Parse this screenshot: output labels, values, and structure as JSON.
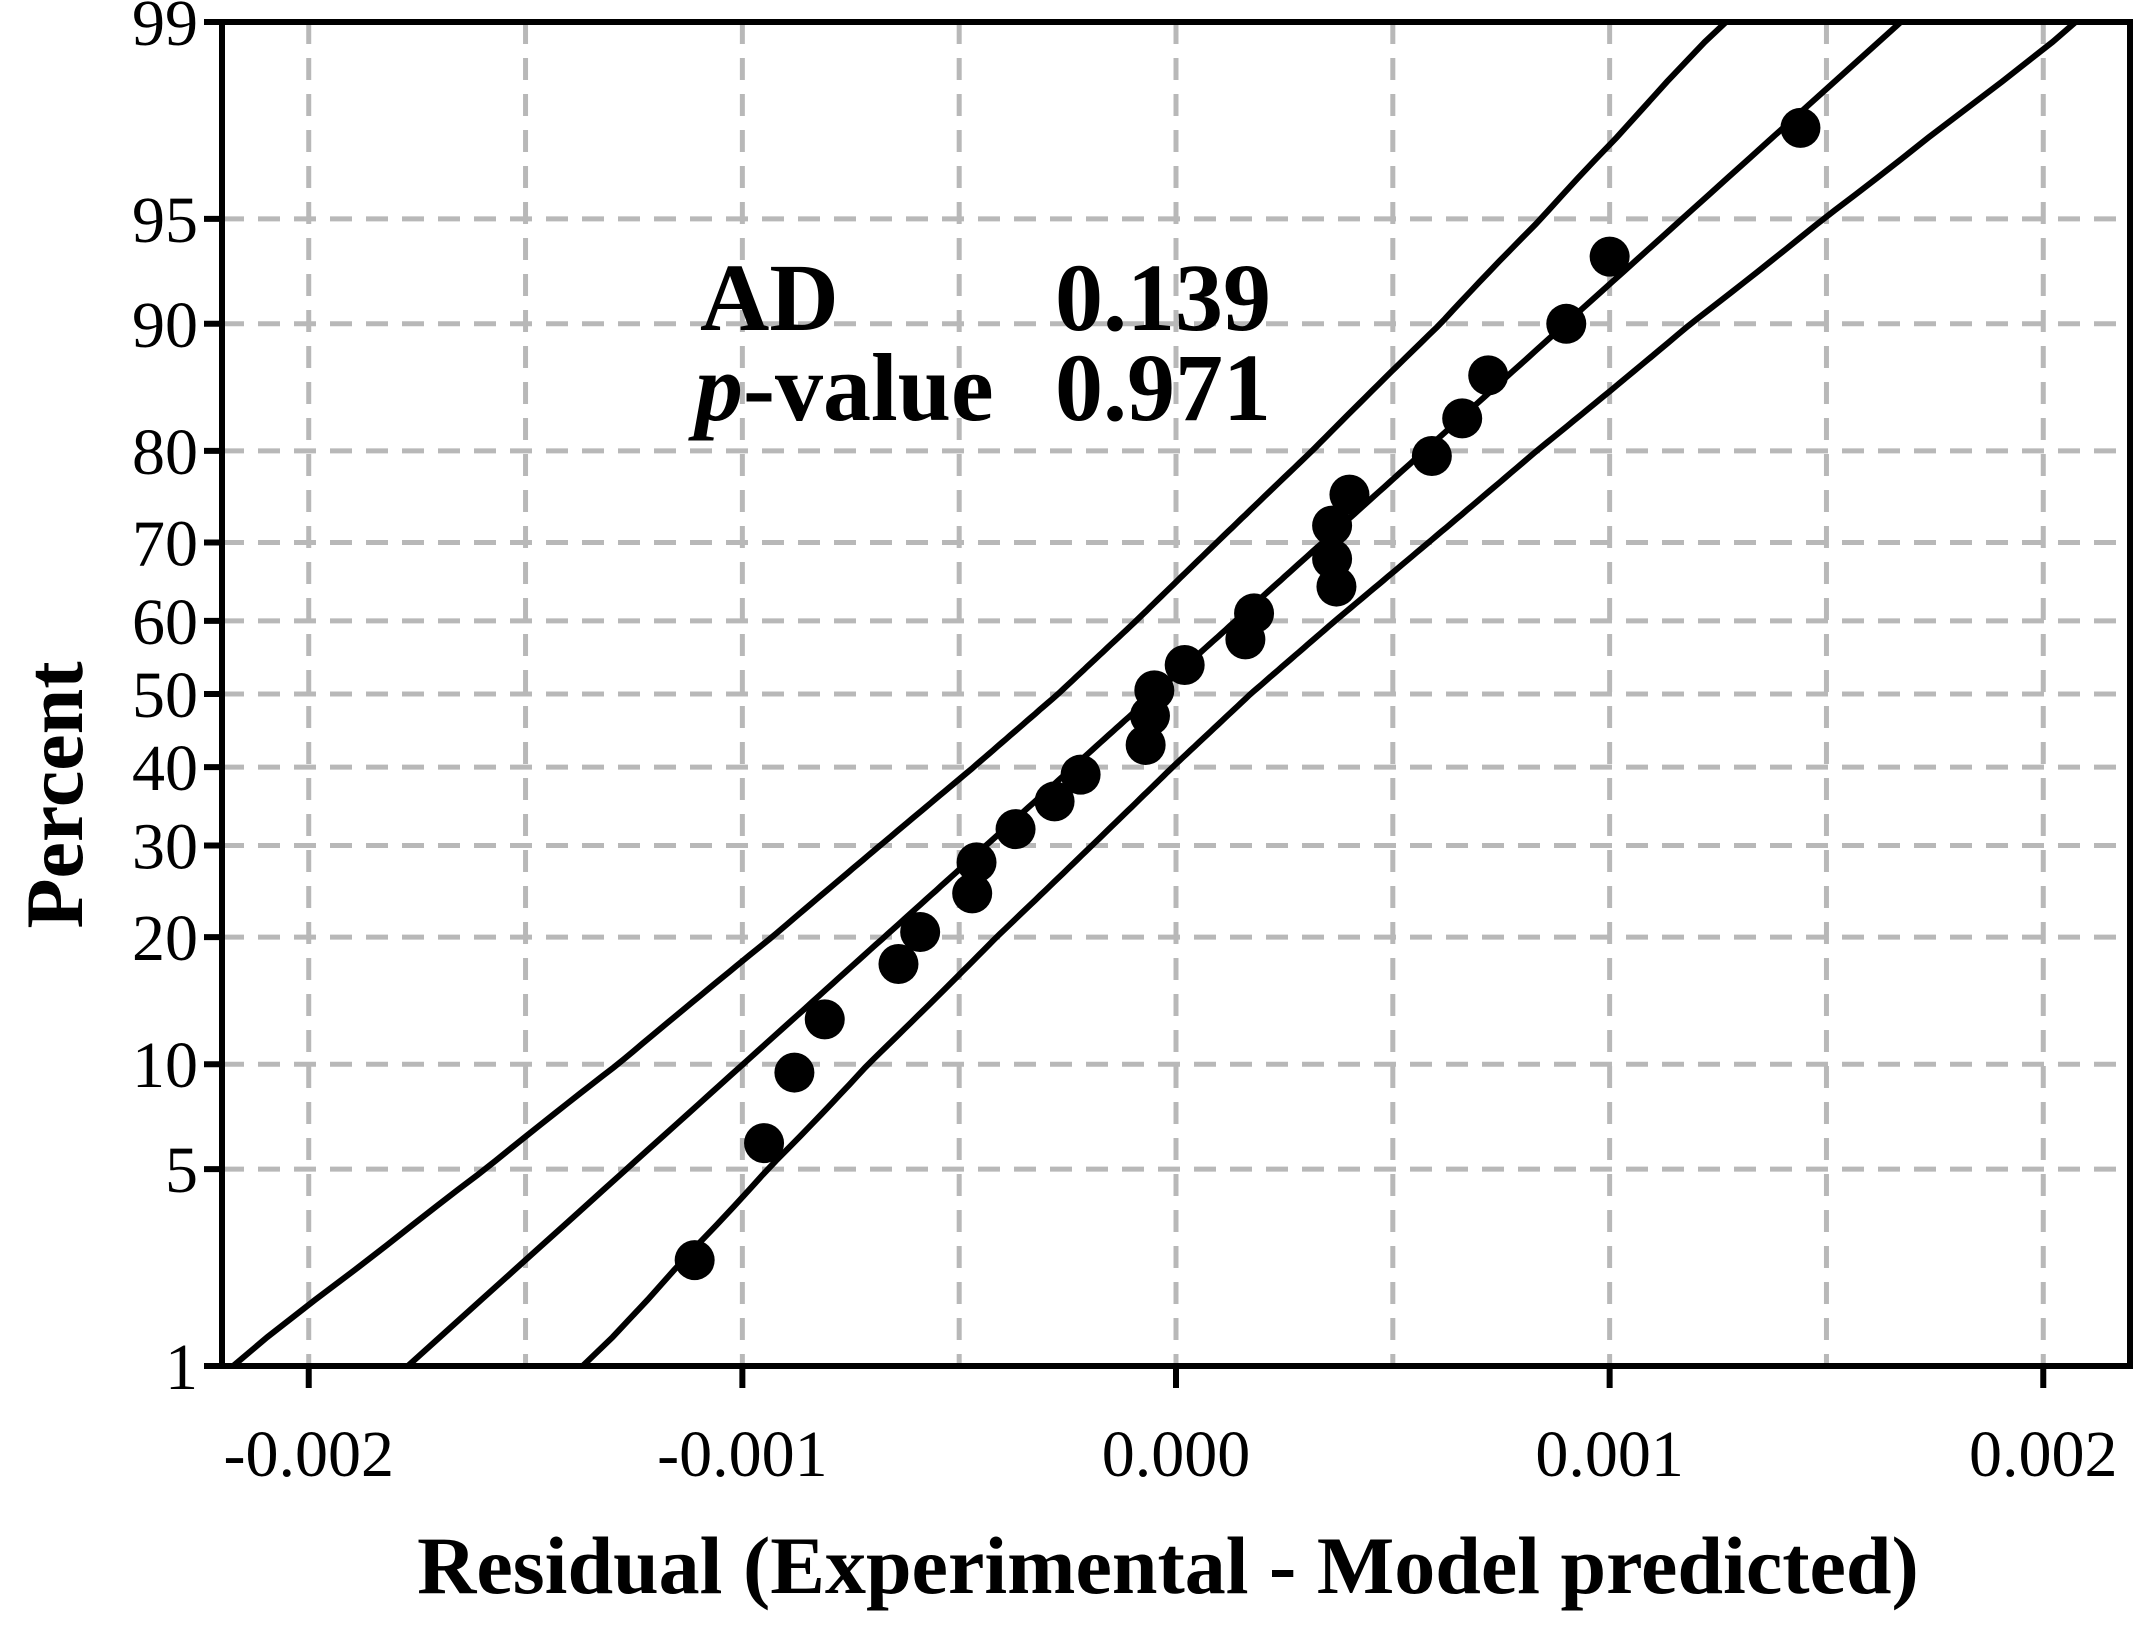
{
  "chart_data": {
    "type": "scatter",
    "xlabel": "Residual (Experimental  -  Model predicted)",
    "ylabel": "Percent",
    "xlim": [
      -0.0022,
      0.0022
    ],
    "ylim": [
      1,
      99
    ],
    "yscale": "normal-probability",
    "grid": true,
    "x_ticks": [
      -0.002,
      -0.001,
      0.0,
      0.001,
      0.002
    ],
    "x_tick_labels": [
      "-0.002",
      "-0.001",
      "0.000",
      "0.001",
      "0.002"
    ],
    "y_ticks": [
      1,
      5,
      10,
      20,
      30,
      40,
      50,
      60,
      70,
      80,
      90,
      95,
      99
    ],
    "y_tick_labels": [
      "1",
      "5",
      "10",
      "20",
      "30",
      "40",
      "50",
      "60",
      "70",
      "80",
      "90",
      "95",
      "99"
    ],
    "points": [
      {
        "x": -0.00111,
        "y": 2.5
      },
      {
        "x": -0.00095,
        "y": 6.0
      },
      {
        "x": -0.00088,
        "y": 9.5
      },
      {
        "x": -0.00081,
        "y": 13.0
      },
      {
        "x": -0.00064,
        "y": 17.5
      },
      {
        "x": -0.00059,
        "y": 20.5
      },
      {
        "x": -0.00047,
        "y": 24.5
      },
      {
        "x": -0.00046,
        "y": 28.0
      },
      {
        "x": -0.00037,
        "y": 32.0
      },
      {
        "x": -0.00028,
        "y": 35.5
      },
      {
        "x": -0.00022,
        "y": 39.0
      },
      {
        "x": -7e-05,
        "y": 43.0
      },
      {
        "x": -6e-05,
        "y": 47.0
      },
      {
        "x": -5e-05,
        "y": 50.5
      },
      {
        "x": 2e-05,
        "y": 54.0
      },
      {
        "x": 0.00016,
        "y": 57.5
      },
      {
        "x": 0.00018,
        "y": 61.0
      },
      {
        "x": 0.00037,
        "y": 64.5
      },
      {
        "x": 0.00036,
        "y": 68.0
      },
      {
        "x": 0.00036,
        "y": 72.0
      },
      {
        "x": 0.0004,
        "y": 75.5
      },
      {
        "x": 0.00059,
        "y": 79.5
      },
      {
        "x": 0.00066,
        "y": 83.0
      },
      {
        "x": 0.00072,
        "y": 86.5
      },
      {
        "x": 0.0009,
        "y": 90.0
      },
      {
        "x": 0.001,
        "y": 93.5
      },
      {
        "x": 0.00144,
        "y": 97.5
      }
    ],
    "fit_line": {
      "mean": -5e-05,
      "sd": 0.00074
    },
    "confidence_band": {
      "percent_grid": [
        1,
        2.5,
        5,
        10,
        20,
        30,
        40,
        50,
        60,
        70,
        80,
        90,
        95,
        97.5,
        99
      ],
      "half_width_factor": [
        0.55,
        0.49,
        0.44,
        0.39,
        0.35,
        0.33,
        0.31,
        0.3,
        0.31,
        0.33,
        0.35,
        0.39,
        0.44,
        0.49,
        0.55
      ]
    },
    "annotations": [
      {
        "label": "AD",
        "value": "0.139"
      },
      {
        "label_prefix": "p",
        "label_suffix": "-value",
        "value": "0.971"
      }
    ],
    "colors": {
      "marker": "#000000",
      "line": "#000000",
      "grid": "#b8b8b8"
    }
  }
}
